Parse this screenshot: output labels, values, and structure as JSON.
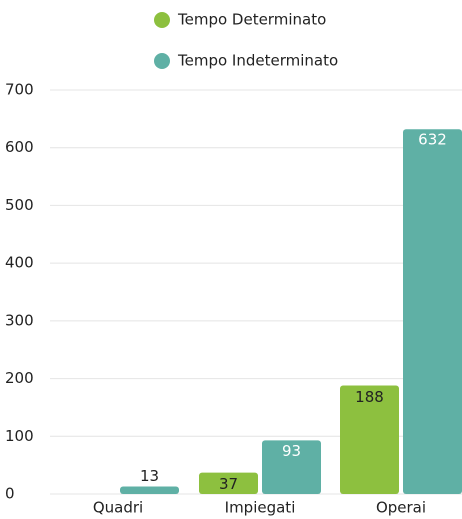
{
  "chart_data": {
    "type": "bar",
    "categories": [
      "Quadri",
      "Impiegati",
      "Operai"
    ],
    "series": [
      {
        "name": "Tempo Determinato",
        "color": "#8dc03f",
        "values": [
          null,
          37,
          188
        ]
      },
      {
        "name": "Tempo Indeterminato",
        "color": "#5fb0a5",
        "values": [
          13,
          93,
          632
        ]
      }
    ],
    "ylim": [
      0,
      700
    ],
    "yticks": [
      0,
      100,
      200,
      300,
      400,
      500,
      600,
      700
    ],
    "grid": true
  }
}
